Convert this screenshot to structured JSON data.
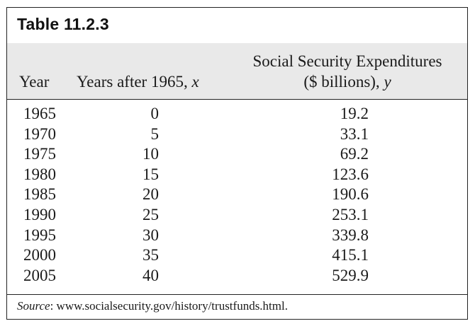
{
  "table": {
    "title": "Table 11.2.3",
    "headers": {
      "year": "Year",
      "x_text": "Years after 1965, ",
      "x_var": "x",
      "y_line1": "Social Security Expenditures",
      "y_line2_text": "($ billions), ",
      "y_var": "y"
    },
    "rows": [
      {
        "year": "1965",
        "x": "0",
        "y": "19.2"
      },
      {
        "year": "1970",
        "x": "5",
        "y": "33.1"
      },
      {
        "year": "1975",
        "x": "10",
        "y": "69.2"
      },
      {
        "year": "1980",
        "x": "15",
        "y": "123.6"
      },
      {
        "year": "1985",
        "x": "20",
        "y": "190.6"
      },
      {
        "year": "1990",
        "x": "25",
        "y": "253.1"
      },
      {
        "year": "1995",
        "x": "30",
        "y": "339.8"
      },
      {
        "year": "2000",
        "x": "35",
        "y": "415.1"
      },
      {
        "year": "2005",
        "x": "40",
        "y": "529.9"
      }
    ],
    "source_label": "Source",
    "source_text": ": www.socialsecurity.gov/history/trustfunds.html."
  },
  "colors": {
    "header_band": "#e9e9e9",
    "border": "#222222"
  }
}
